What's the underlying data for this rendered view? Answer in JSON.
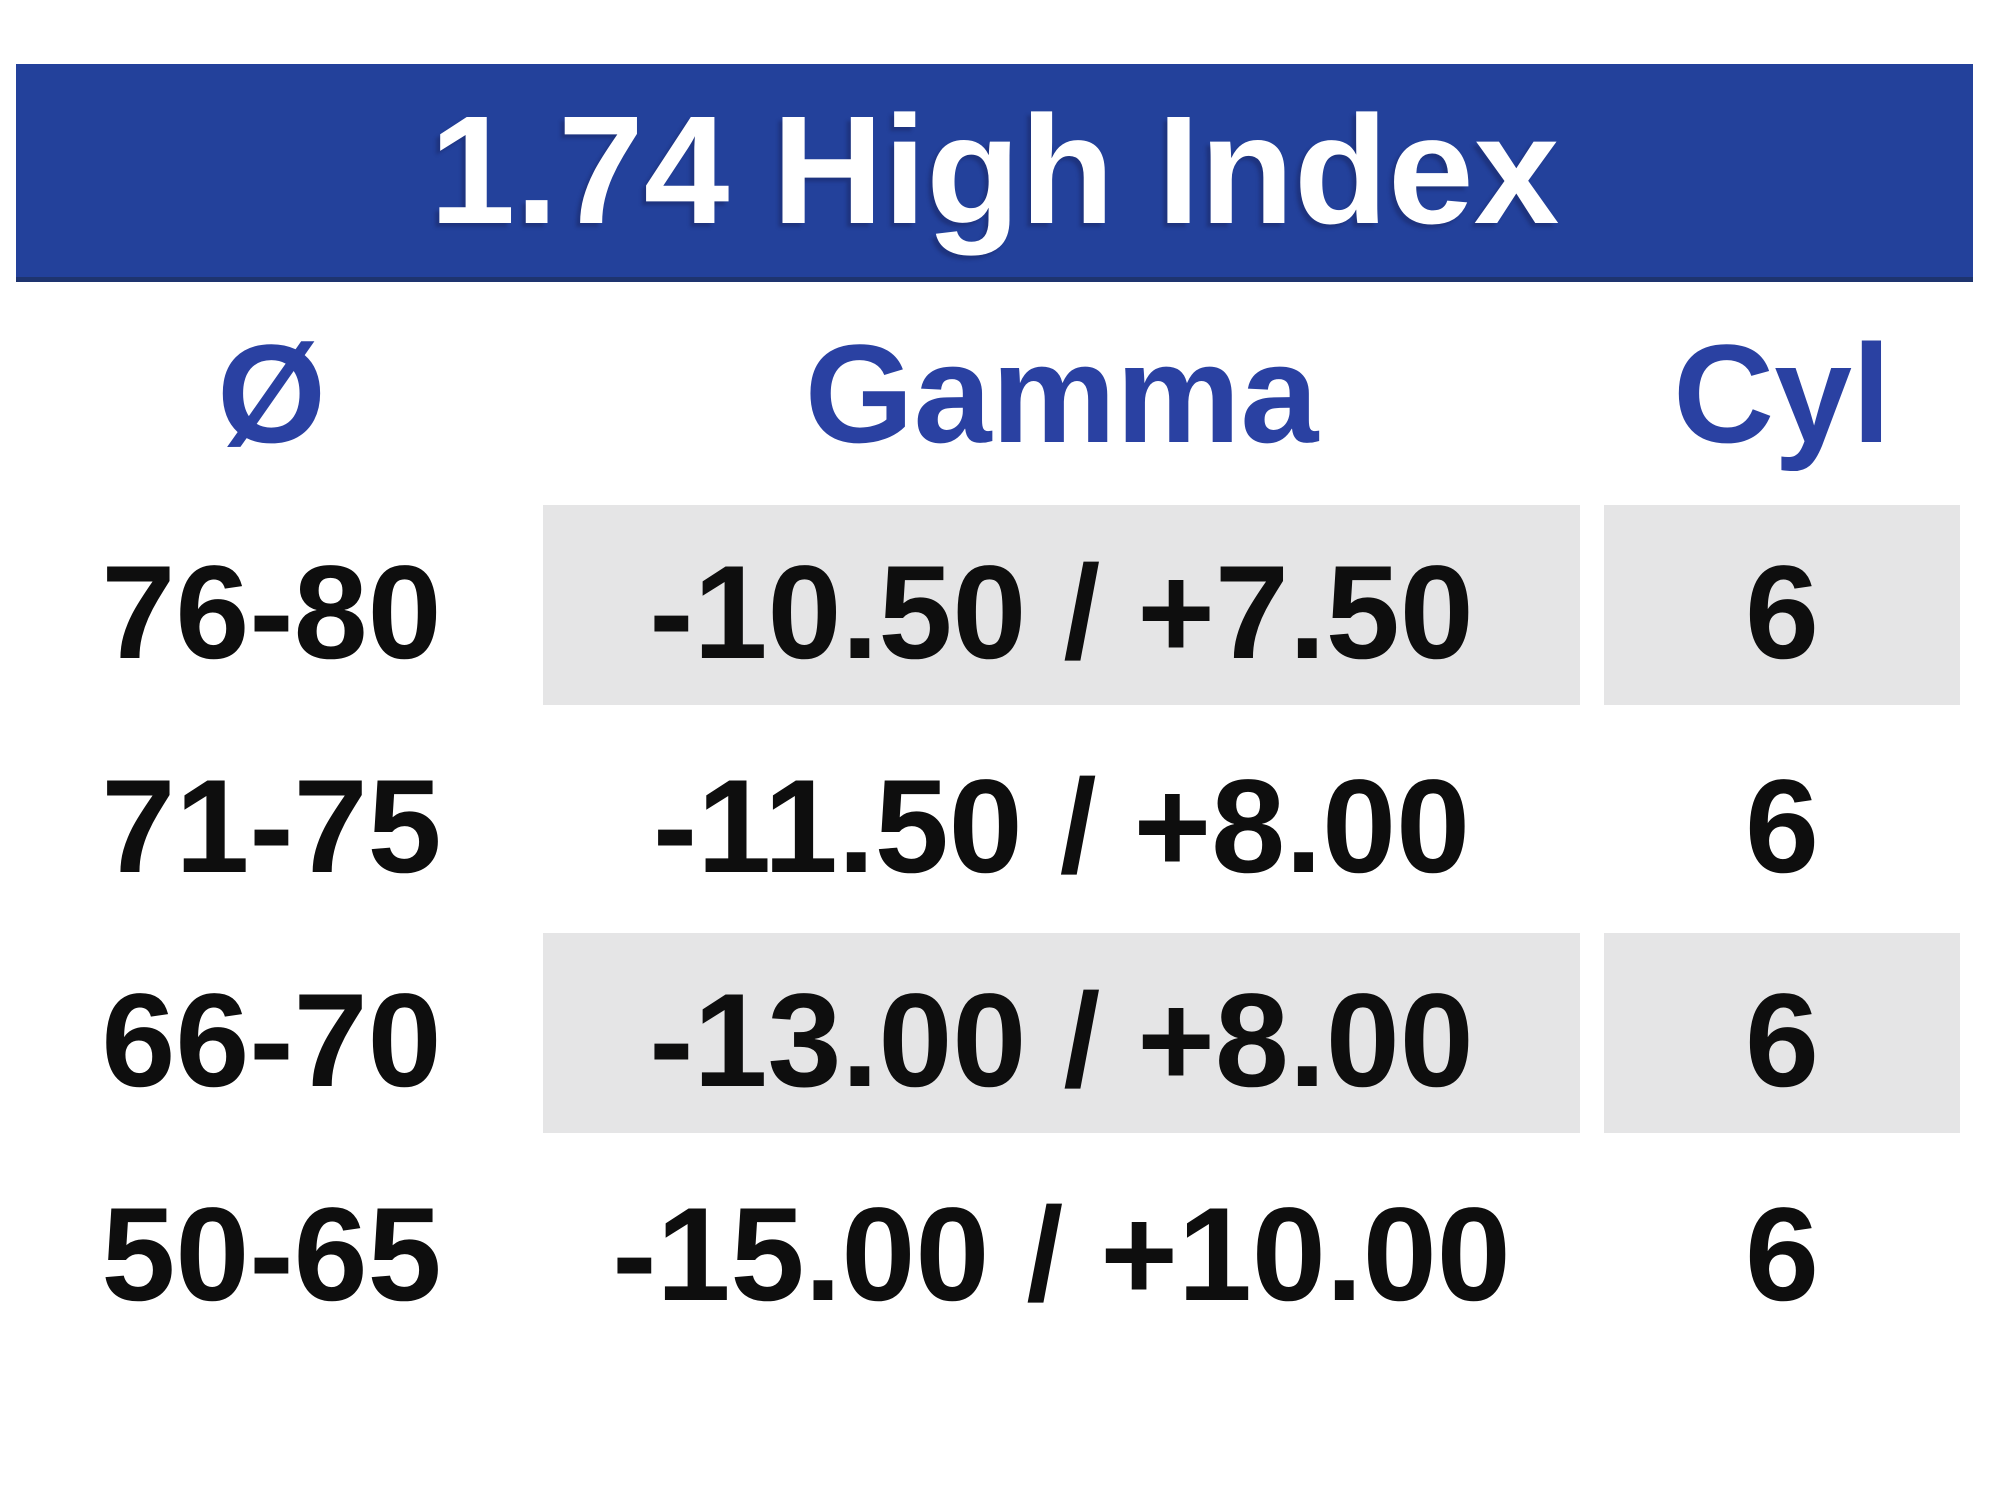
{
  "title": "1.74 High Index",
  "table": {
    "columns": [
      {
        "key": "diameter",
        "label": "Ø"
      },
      {
        "key": "gamma",
        "label": "Gamma"
      },
      {
        "key": "cyl",
        "label": "Cyl"
      }
    ],
    "rows": [
      {
        "diameter": "76-80",
        "gamma": "-10.50 / +7.50",
        "cyl": "6",
        "shaded": true
      },
      {
        "diameter": "71-75",
        "gamma": "-11.50 / +8.00",
        "cyl": "6",
        "shaded": false
      },
      {
        "diameter": "66-70",
        "gamma": "-13.00 / +8.00",
        "cyl": "6",
        "shaded": true
      },
      {
        "diameter": "50-65",
        "gamma": "-15.00 / +10.00",
        "cyl": "6",
        "shaded": false
      }
    ]
  },
  "chart_data": {
    "type": "table",
    "title": "1.74 High Index",
    "columns": [
      "Ø",
      "Gamma",
      "Cyl"
    ],
    "rows": [
      [
        "76-80",
        "-10.50 / +7.50",
        "6"
      ],
      [
        "71-75",
        "-11.50 / +8.00",
        "6"
      ],
      [
        "66-70",
        "-13.00 / +8.00",
        "6"
      ],
      [
        "50-65",
        "-15.00 / +10.00",
        "6"
      ]
    ],
    "layout_hints": {
      "shaded_row_indices": [
        0,
        2
      ],
      "shading_applies_to_columns": [
        "Gamma",
        "Cyl"
      ],
      "header_style": "blue bold text, no background",
      "banner_style": "full-width blue bar with white title"
    }
  },
  "colors": {
    "banner_blue": "#23419b",
    "banner_bottom_edge": "#1e346f",
    "header_text_blue": "#2a41a2",
    "shade_gray": "#e5e5e6",
    "body_text": "#0e0e0e",
    "title_text": "#ffffff",
    "background": "#ffffff"
  }
}
